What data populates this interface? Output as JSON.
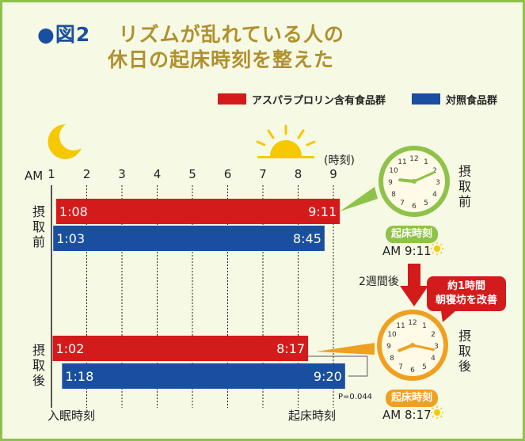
{
  "figure": {
    "number": "●図2",
    "title_line1": "リズムが乱れている人の",
    "title_line2": "休日の起床時刻を整えた"
  },
  "legend": [
    {
      "label": "アスパラプロリン含有食品群",
      "color": "#d41b1b"
    },
    {
      "label": "対照食品群",
      "color": "#1a4fa0"
    }
  ],
  "axis": {
    "prefix": "AM",
    "unit": "(時刻)",
    "sleep_label": "入眠時刻",
    "wake_label": "起床時刻"
  },
  "groups": {
    "before": {
      "label": "摂取前"
    },
    "after": {
      "label": "摂取後"
    }
  },
  "arrow_label": "2週間後",
  "callout_line1": "約1時間",
  "callout_line2": "朝寝坊を改善",
  "clocks": {
    "before": {
      "side_label": "摂取前",
      "pill": "起床時刻",
      "time": "AM 9:11",
      "hour": 9,
      "minute": 11
    },
    "after": {
      "side_label": "摂取後",
      "pill": "起床時刻",
      "time": "AM 8:17",
      "hour": 8,
      "minute": 17
    }
  },
  "p_value": "P=0.044",
  "chart_data": {
    "type": "bar",
    "orientation": "horizontal-range",
    "title": "リズムが乱れている人の休日の起床時刻を整えた",
    "xlabel": "(時刻)",
    "xlim": [
      1,
      9
    ],
    "ticks": [
      "1",
      "2",
      "3",
      "4",
      "5",
      "6",
      "7",
      "8",
      "9"
    ],
    "series": [
      {
        "name": "アスパラプロリン含有食品群",
        "group": "before",
        "start": 1.133,
        "end": 9.183,
        "start_label": "1:08",
        "end_label": "9:11"
      },
      {
        "name": "対照食品群",
        "group": "before",
        "start": 1.05,
        "end": 8.75,
        "start_label": "1:03",
        "end_label": "8:45"
      },
      {
        "name": "アスパラプロリン含有食品群",
        "group": "after",
        "start": 1.033,
        "end": 8.283,
        "start_label": "1:02",
        "end_label": "8:17"
      },
      {
        "name": "対照食品群",
        "group": "after",
        "start": 1.3,
        "end": 9.333,
        "start_label": "1:18",
        "end_label": "9:20"
      }
    ]
  }
}
